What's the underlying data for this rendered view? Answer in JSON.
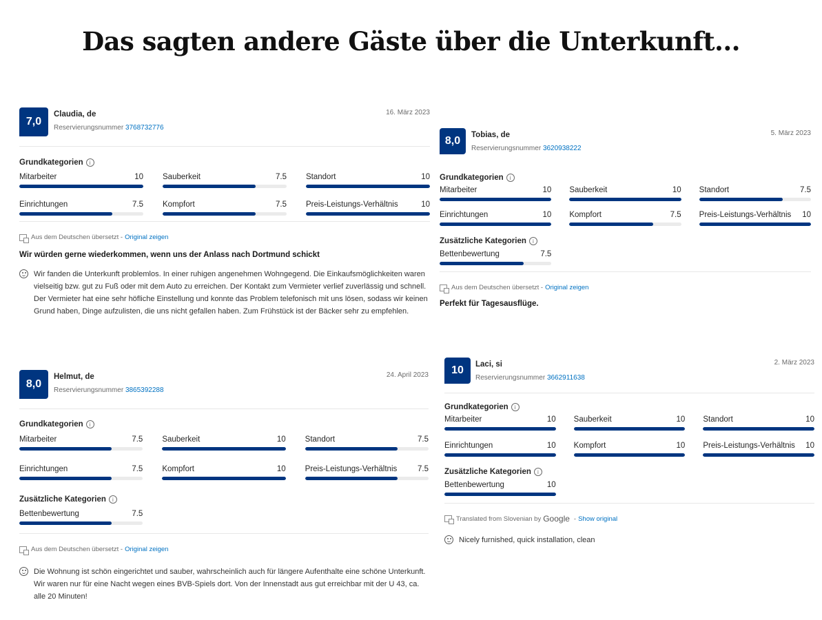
{
  "page": {
    "title": "Das sagten andere Gäste über die Unterkunft..."
  },
  "colors": {
    "brand": "#003580",
    "link": "#0071c2",
    "bar_track": "#ebebeb"
  },
  "reviews": [
    {
      "score": "7,0",
      "guest": "Claudia, de",
      "reservation_label": "Reservierungsnummer",
      "reservation_number": "3768732776",
      "date": "16. März 2023",
      "categories_title": "Grundkategorien",
      "categories": [
        {
          "label": "Mitarbeiter",
          "value": "10",
          "percent": 100
        },
        {
          "label": "Sauberkeit",
          "value": "7.5",
          "percent": 75
        },
        {
          "label": "Standort",
          "value": "10",
          "percent": 100
        },
        {
          "label": "Einrichtungen",
          "value": "7.5",
          "percent": 75
        },
        {
          "label": "Kompfort",
          "value": "7.5",
          "percent": 75
        },
        {
          "label": "Preis-Leistungs-Verhältnis",
          "value": "10",
          "percent": 100
        }
      ],
      "translation_note": "Aus dem Deutschen übersetzt -",
      "translation_link": "Original zeigen",
      "headline": "Wir würden gerne wiederkommen, wenn uns der Anlass nach Dortmund schickt",
      "text": "Wir fanden die Unterkunft problemlos. In einer ruhigen angenehmen Wohngegend. Die Einkaufsmöglichkeiten waren vielseitig bzw. gut zu Fuß oder mit dem Auto zu erreichen. Der Kontakt zum Vermieter verlief zuverlässig und schnell. Der Vermieter hat eine sehr höfliche Einstellung und konnte das Problem telefonisch mit uns lösen, sodass wir keinen Grund haben, Dinge aufzulisten, die uns nicht gefallen haben. Zum Frühstück ist der Bäcker sehr zu empfehlen."
    },
    {
      "score": "8,0",
      "guest": "Tobias, de",
      "reservation_label": "Reservierungsnummer",
      "reservation_number": "3620938222",
      "date": "5. März 2023",
      "categories_title": "Grundkategorien",
      "categories": [
        {
          "label": "Mitarbeiter",
          "value": "10",
          "percent": 100
        },
        {
          "label": "Sauberkeit",
          "value": "10",
          "percent": 100
        },
        {
          "label": "Standort",
          "value": "7.5",
          "percent": 75
        },
        {
          "label": "Einrichtungen",
          "value": "10",
          "percent": 100
        },
        {
          "label": "Kompfort",
          "value": "7.5",
          "percent": 75
        },
        {
          "label": "Preis-Leistungs-Verhältnis",
          "value": "10",
          "percent": 100
        }
      ],
      "extra_title": "Zusätzliche Kategorien",
      "extra": [
        {
          "label": "Bettenbewertung",
          "value": "7.5",
          "percent": 75
        }
      ],
      "translation_note": "Aus dem Deutschen übersetzt -",
      "translation_link": "Original zeigen",
      "headline": "Perfekt für Tagesausflüge."
    },
    {
      "score": "8,0",
      "guest": "Helmut, de",
      "reservation_label": "Reservierungsnummer",
      "reservation_number": "3865392288",
      "date": "24. April 2023",
      "categories_title": "Grundkategorien",
      "categories": [
        {
          "label": "Mitarbeiter",
          "value": "7.5",
          "percent": 75
        },
        {
          "label": "Sauberkeit",
          "value": "10",
          "percent": 100
        },
        {
          "label": "Standort",
          "value": "7.5",
          "percent": 75
        },
        {
          "label": "Einrichtungen",
          "value": "7.5",
          "percent": 75
        },
        {
          "label": "Kompfort",
          "value": "10",
          "percent": 100
        },
        {
          "label": "Preis-Leistungs-Verhältnis",
          "value": "7.5",
          "percent": 75
        }
      ],
      "extra_title": "Zusätzliche Kategorien",
      "extra": [
        {
          "label": "Bettenbewertung",
          "value": "7.5",
          "percent": 75
        }
      ],
      "translation_note": "Aus dem Deutschen übersetzt -",
      "translation_link": "Original zeigen",
      "text": "Die Wohnung ist schön eingerichtet und sauber, wahrscheinlich auch für längere Aufenthalte eine schöne Unterkunft. Wir waren nur für eine Nacht wegen eines BVB-Spiels dort. Von der Innenstadt aus gut erreichbar mit der U 43, ca. alle 20 Minuten!"
    },
    {
      "score": "10",
      "guest": "Laci, si",
      "reservation_label": "Reservierungsnummer",
      "reservation_number": "3662911638",
      "date": "2. März 2023",
      "categories_title": "Grundkategorien",
      "categories": [
        {
          "label": "Mitarbeiter",
          "value": "10",
          "percent": 100
        },
        {
          "label": "Sauberkeit",
          "value": "10",
          "percent": 100
        },
        {
          "label": "Standort",
          "value": "10",
          "percent": 100
        },
        {
          "label": "Einrichtungen",
          "value": "10",
          "percent": 100
        },
        {
          "label": "Kompfort",
          "value": "10",
          "percent": 100
        },
        {
          "label": "Preis-Leistungs-Verhältnis",
          "value": "10",
          "percent": 100
        }
      ],
      "extra_title": "Zusätzliche Kategorien",
      "extra": [
        {
          "label": "Bettenbewertung",
          "value": "10",
          "percent": 100
        }
      ],
      "translation_note": "Translated from Slovenian by",
      "translation_brand": "Google",
      "translation_dash": "-",
      "translation_link": "Show original",
      "text": "Nicely furnished, quick installation, clean"
    }
  ]
}
